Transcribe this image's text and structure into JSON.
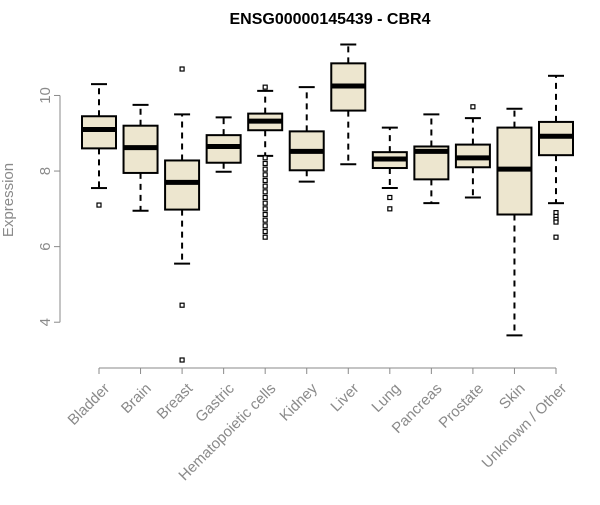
{
  "chart_data": {
    "type": "boxplot",
    "title": "ENSG00000145439 - CBR4",
    "xlabel": "",
    "ylabel": "Expression",
    "ylim": [
      3.0,
      11.6
    ],
    "yticks": [
      4,
      6,
      8,
      10
    ],
    "grid": false,
    "legend": "none",
    "box_fill": "#ede6cf",
    "box_stroke": "#000000",
    "categories": [
      "Bladder",
      "Brain",
      "Breast",
      "Gastric",
      "Hematopoietic cells",
      "Kidney",
      "Liver",
      "Lung",
      "Pancreas",
      "Prostate",
      "Skin",
      "Unknown / Other"
    ],
    "boxes": [
      {
        "label": "Bladder",
        "whisker_low": 7.55,
        "q1": 8.6,
        "median": 9.1,
        "q3": 9.45,
        "whisker_high": 10.3,
        "outliers": [
          7.1
        ]
      },
      {
        "label": "Brain",
        "whisker_low": 6.95,
        "q1": 7.95,
        "median": 8.62,
        "q3": 9.2,
        "whisker_high": 9.75,
        "outliers": []
      },
      {
        "label": "Breast",
        "whisker_low": 5.55,
        "q1": 6.98,
        "median": 7.7,
        "q3": 8.28,
        "whisker_high": 9.5,
        "outliers": [
          10.7,
          4.45,
          3.0
        ]
      },
      {
        "label": "Gastric",
        "whisker_low": 7.98,
        "q1": 8.22,
        "median": 8.65,
        "q3": 8.95,
        "whisker_high": 9.42,
        "outliers": []
      },
      {
        "label": "Hematopoietic cells",
        "whisker_low": 8.4,
        "q1": 9.08,
        "median": 9.32,
        "q3": 9.52,
        "whisker_high": 10.12,
        "outliers": [
          10.22,
          8.35,
          8.2,
          8.05,
          7.9,
          7.75,
          7.6,
          7.45,
          7.3,
          7.15,
          7.0,
          6.85,
          6.7,
          6.55,
          6.4,
          6.25
        ]
      },
      {
        "label": "Kidney",
        "whisker_low": 7.72,
        "q1": 8.02,
        "median": 8.52,
        "q3": 9.05,
        "whisker_high": 10.22,
        "outliers": []
      },
      {
        "label": "Liver",
        "whisker_low": 8.18,
        "q1": 9.6,
        "median": 10.25,
        "q3": 10.85,
        "whisker_high": 11.35,
        "outliers": []
      },
      {
        "label": "Lung",
        "whisker_low": 7.55,
        "q1": 8.08,
        "median": 8.32,
        "q3": 8.5,
        "whisker_high": 9.15,
        "outliers": [
          7.3,
          7.0
        ]
      },
      {
        "label": "Pancreas",
        "whisker_low": 7.15,
        "q1": 7.78,
        "median": 8.52,
        "q3": 8.65,
        "whisker_high": 9.5,
        "outliers": []
      },
      {
        "label": "Prostate",
        "whisker_low": 7.3,
        "q1": 8.1,
        "median": 8.35,
        "q3": 8.7,
        "whisker_high": 9.4,
        "outliers": [
          9.7
        ]
      },
      {
        "label": "Skin",
        "whisker_low": 3.65,
        "q1": 6.85,
        "median": 8.05,
        "q3": 9.15,
        "whisker_high": 9.65,
        "outliers": []
      },
      {
        "label": "Unknown / Other",
        "whisker_low": 7.15,
        "q1": 8.42,
        "median": 8.92,
        "q3": 9.3,
        "whisker_high": 10.52,
        "outliers": [
          6.9,
          6.8,
          6.72,
          6.65,
          6.25
        ]
      }
    ]
  }
}
